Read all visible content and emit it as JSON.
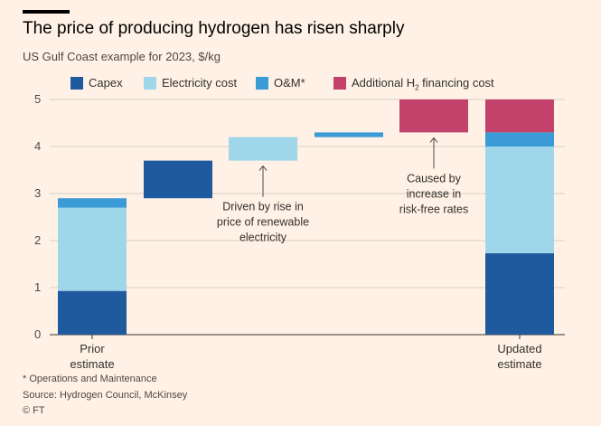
{
  "header": {
    "title": "The price of producing hydrogen has risen sharply",
    "subtitle": "US Gulf Coast example for 2023, $/kg"
  },
  "legend": [
    {
      "label": "Capex",
      "sub": "",
      "suffix": "",
      "color": "#1f5a9e"
    },
    {
      "label": "Electricity cost",
      "sub": "",
      "suffix": "",
      "color": "#9fd6ea"
    },
    {
      "label": "O&M*",
      "sub": "",
      "suffix": "",
      "color": "#3a9bd6"
    },
    {
      "label": "Additional H",
      "sub": "2",
      "suffix": " financing cost",
      "color": "#c2426b"
    }
  ],
  "chart_data": {
    "type": "bar",
    "subtype": "waterfall",
    "categories": [
      "Prior estimate",
      "Capex",
      "Electricity cost",
      "O&M*",
      "Additional H2 financing cost",
      "Updated estimate"
    ],
    "x_labels": [
      [
        "Prior",
        "estimate"
      ],
      [
        "",
        ""
      ],
      [
        "",
        ""
      ],
      [
        "",
        ""
      ],
      [
        "",
        ""
      ],
      [
        "Updated",
        "estimate"
      ]
    ],
    "ylim": [
      0,
      5
    ],
    "yticks": [
      0,
      1,
      2,
      3,
      4,
      5
    ],
    "grid": true,
    "colors": {
      "Capex": "#1f5a9e",
      "Electricity cost": "#9fd6ea",
      "O&M*": "#3a9bd6",
      "Additional H2 financing cost": "#c2426b"
    },
    "bars": [
      {
        "category": "Prior estimate",
        "segments": [
          {
            "series": "Capex",
            "from": 0,
            "to": 0.93
          },
          {
            "series": "Electricity cost",
            "from": 0.93,
            "to": 2.7
          },
          {
            "series": "O&M*",
            "from": 2.7,
            "to": 2.9
          }
        ]
      },
      {
        "category": "Capex",
        "segments": [
          {
            "series": "Capex",
            "from": 2.9,
            "to": 3.7
          }
        ]
      },
      {
        "category": "Electricity cost",
        "segments": [
          {
            "series": "Electricity cost",
            "from": 3.7,
            "to": 4.2
          }
        ]
      },
      {
        "category": "O&M*",
        "segments": [
          {
            "series": "O&M*",
            "from": 4.2,
            "to": 4.3
          }
        ]
      },
      {
        "category": "Additional H2 financing cost",
        "segments": [
          {
            "series": "Additional H2 financing cost",
            "from": 4.3,
            "to": 5.0
          }
        ]
      },
      {
        "category": "Updated estimate",
        "segments": [
          {
            "series": "Capex",
            "from": 0,
            "to": 1.73
          },
          {
            "series": "Electricity cost",
            "from": 1.73,
            "to": 4.0
          },
          {
            "series": "O&M*",
            "from": 4.0,
            "to": 4.3
          },
          {
            "series": "Additional H2 financing cost",
            "from": 4.3,
            "to": 5.0
          }
        ]
      }
    ],
    "annotations": [
      {
        "bar_index": 2,
        "lines": [
          "Driven by rise in",
          "price of renewable",
          "electricity"
        ]
      },
      {
        "bar_index": 4,
        "lines": [
          "Caused by",
          "increase in",
          "risk-free rates"
        ]
      }
    ]
  },
  "footer": {
    "footnote": "* Operations and Maintenance",
    "source": "Source: Hydrogen Council, McKinsey",
    "credit": "© FT"
  }
}
